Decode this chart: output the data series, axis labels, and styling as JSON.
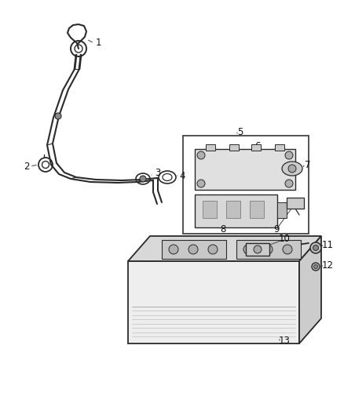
{
  "bg_color": "#ffffff",
  "line_color": "#2a2a2a",
  "label_color": "#111111",
  "font_size": 8.5,
  "fig_w": 4.38,
  "fig_h": 5.33,
  "dpi": 100
}
